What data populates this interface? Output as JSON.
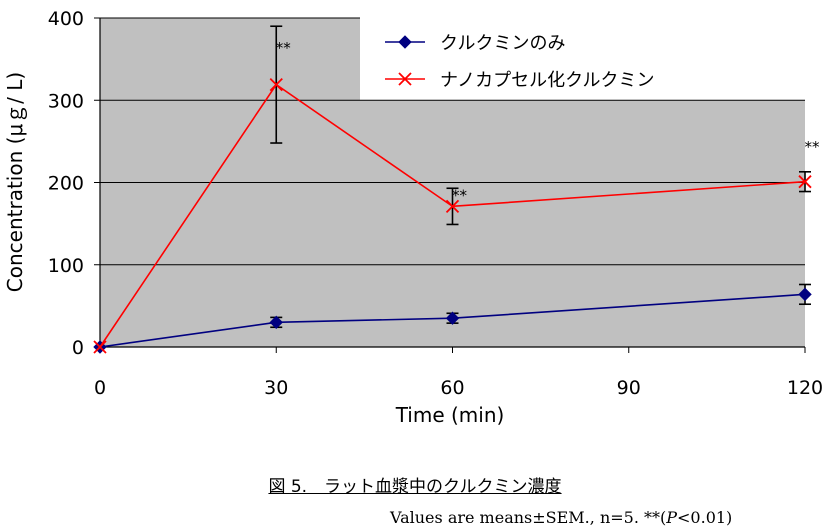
{
  "chart_data": {
    "type": "line",
    "xlabel": "Time (min)",
    "ylabel": "Concentration (μｇ/ L)",
    "x_ticks": [
      0,
      30,
      60,
      90,
      120
    ],
    "y_ticks": [
      0,
      100,
      200,
      300,
      400
    ],
    "xlim": [
      0,
      120
    ],
    "ylim": [
      0,
      400
    ],
    "grid": "horizontal",
    "legend_position": "top-right",
    "series": [
      {
        "name": "クルクミンのみ",
        "color": "#000080",
        "marker": "diamond",
        "x": [
          0,
          30,
          60,
          120
        ],
        "y": [
          0,
          30,
          35,
          64
        ],
        "err": [
          0,
          6,
          6,
          12
        ]
      },
      {
        "name": "ナノカプセル化クルクミン",
        "color": "#ff0000",
        "marker": "x",
        "x": [
          0,
          30,
          60,
          120
        ],
        "y": [
          0,
          319,
          171,
          201
        ],
        "err": [
          0,
          71,
          22,
          12
        ],
        "annotations": [
          "",
          "**",
          "**",
          "**"
        ]
      }
    ]
  },
  "caption": {
    "title": "図 5.　ラット血漿中のクルクミン濃度",
    "note_prefix": "Values are means±SEM., n=5. **(",
    "note_p": "P",
    "note_suffix": "<0.01)"
  }
}
